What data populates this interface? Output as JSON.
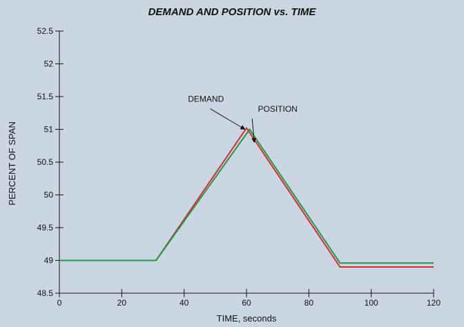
{
  "chart_data": {
    "type": "line",
    "title": "DEMAND AND POSITION vs. TIME",
    "xlabel": "TIME, seconds",
    "ylabel": "PERCENT OF SPAN",
    "xlim": [
      0,
      120
    ],
    "ylim": [
      48.5,
      52.5
    ],
    "x_ticks": [
      0,
      20,
      40,
      60,
      80,
      100,
      120
    ],
    "y_ticks": [
      48.5,
      49,
      49.5,
      50,
      50.5,
      51,
      51.5,
      52,
      52.5
    ],
    "y_tick_labels": [
      "48.5",
      "49",
      "49.5",
      "50",
      "50.5",
      "51",
      "51.5",
      "52",
      "52.5"
    ],
    "grid": false,
    "series": [
      {
        "name": "DEMAND",
        "color": "#e0282a",
        "x": [
          0,
          31,
          60,
          90,
          120
        ],
        "y": [
          49.0,
          49.0,
          51.02,
          48.9,
          48.9
        ]
      },
      {
        "name": "POSITION",
        "color": "#1a9a4a",
        "x": [
          0,
          31,
          61,
          90,
          120
        ],
        "y": [
          49.0,
          49.0,
          51.0,
          48.96,
          48.96
        ]
      }
    ],
    "annotations": [
      {
        "text": "DEMAND",
        "x": 47,
        "y": 51.42,
        "arrow_to": [
          59.5,
          51.0
        ]
      },
      {
        "text": "POSITION",
        "x": 70,
        "y": 51.27,
        "arrow_to": [
          62.5,
          50.8
        ]
      }
    ]
  }
}
